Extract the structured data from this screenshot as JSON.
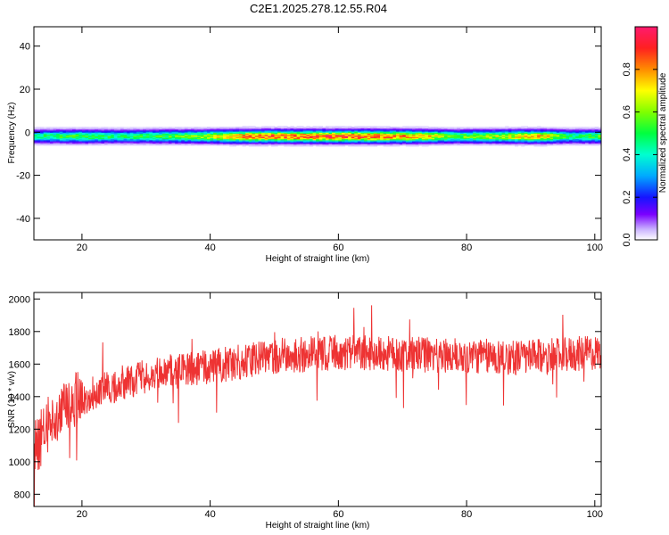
{
  "title": "C2E1.2025.278.12.55.R04",
  "chart_data": [
    {
      "type": "heatmap",
      "xlabel": "Height of straight line (km)",
      "ylabel": "Frequency (Hz)",
      "xlim": [
        12.5,
        101
      ],
      "ylim": [
        -50,
        49
      ],
      "xticks": [
        20,
        40,
        60,
        80,
        100
      ],
      "yticks": [
        40,
        20,
        0,
        -20,
        -40
      ],
      "ytick_labels": [
        "40",
        "20",
        "0",
        "-20",
        "-40"
      ],
      "colorbar": {
        "label": "Normalized spectral amplitude",
        "ticks": [
          0.0,
          0.2,
          0.4,
          0.6,
          0.8
        ],
        "tick_labels": [
          "0.0",
          "0.2",
          "0.4",
          "0.6",
          "0.8"
        ],
        "range": [
          0,
          1
        ]
      },
      "band": {
        "center_hz": -2,
        "half_width_hz": 4,
        "amplitude_profile": [
          {
            "x": 13,
            "a": 0.5
          },
          {
            "x": 20,
            "a": 0.6
          },
          {
            "x": 25,
            "a": 0.5
          },
          {
            "x": 30,
            "a": 0.55
          },
          {
            "x": 38,
            "a": 0.65
          },
          {
            "x": 45,
            "a": 0.9
          },
          {
            "x": 55,
            "a": 0.95
          },
          {
            "x": 65,
            "a": 0.95
          },
          {
            "x": 72,
            "a": 0.85
          },
          {
            "x": 78,
            "a": 0.6
          },
          {
            "x": 85,
            "a": 0.7
          },
          {
            "x": 91,
            "a": 0.85
          },
          {
            "x": 96,
            "a": 0.5
          },
          {
            "x": 100,
            "a": 0.6
          }
        ]
      }
    },
    {
      "type": "line",
      "xlabel": "Height of straight line (km)",
      "ylabel": "SNR (10 * v/v)",
      "xlim": [
        12.5,
        101
      ],
      "ylim": [
        725,
        2040
      ],
      "xticks": [
        20,
        40,
        60,
        80,
        100
      ],
      "yticks": [
        800,
        1000,
        1200,
        1400,
        1600,
        1800,
        2000
      ],
      "ytick_labels": [
        "800",
        "1000",
        "1200",
        "1400",
        "1600",
        "1800",
        "2000"
      ],
      "series": [
        {
          "name": "SNR",
          "color": "#ee3333",
          "trend_x": [
            13,
            15,
            18,
            22,
            26,
            30,
            35,
            40,
            45,
            50,
            60,
            70,
            80,
            90,
            100
          ],
          "trend_y": [
            1100,
            1250,
            1350,
            1430,
            1480,
            1520,
            1560,
            1580,
            1620,
            1650,
            1670,
            1660,
            1650,
            1640,
            1670
          ],
          "noise_amplitude": 110
        }
      ]
    }
  ]
}
